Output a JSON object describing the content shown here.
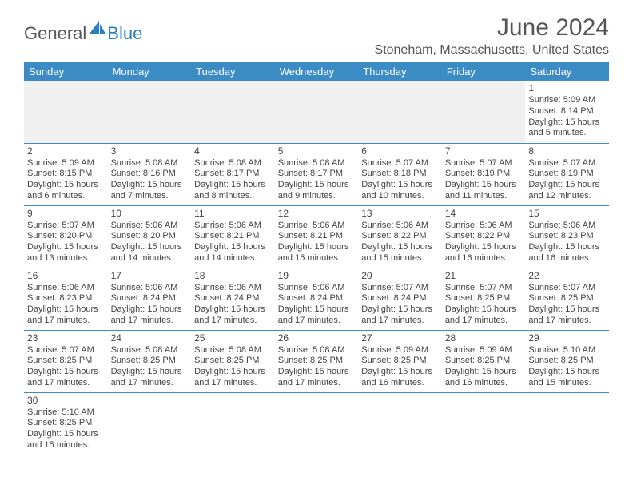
{
  "brand": {
    "part1": "General",
    "part2": "Blue",
    "sail_color": "#2a7fbf"
  },
  "colors": {
    "header_bg": "#3b8bc4",
    "header_fg": "#ffffff",
    "cell_border": "#3b8bc4",
    "blank_bg": "#f0f0f0",
    "text": "#444444",
    "title": "#555555"
  },
  "typography": {
    "month_title_size": 30,
    "location_size": 16,
    "weekday_size": 13,
    "cell_size": 11
  },
  "title": "June 2024",
  "location": "Stoneham, Massachusetts, United States",
  "weekdays": [
    "Sunday",
    "Monday",
    "Tuesday",
    "Wednesday",
    "Thursday",
    "Friday",
    "Saturday"
  ],
  "first_weekday_index": 6,
  "days": [
    {
      "n": 1,
      "sr": "5:09 AM",
      "ss": "8:14 PM",
      "dl": "15 hours and 5 minutes."
    },
    {
      "n": 2,
      "sr": "5:09 AM",
      "ss": "8:15 PM",
      "dl": "15 hours and 6 minutes."
    },
    {
      "n": 3,
      "sr": "5:08 AM",
      "ss": "8:16 PM",
      "dl": "15 hours and 7 minutes."
    },
    {
      "n": 4,
      "sr": "5:08 AM",
      "ss": "8:17 PM",
      "dl": "15 hours and 8 minutes."
    },
    {
      "n": 5,
      "sr": "5:08 AM",
      "ss": "8:17 PM",
      "dl": "15 hours and 9 minutes."
    },
    {
      "n": 6,
      "sr": "5:07 AM",
      "ss": "8:18 PM",
      "dl": "15 hours and 10 minutes."
    },
    {
      "n": 7,
      "sr": "5:07 AM",
      "ss": "8:19 PM",
      "dl": "15 hours and 11 minutes."
    },
    {
      "n": 8,
      "sr": "5:07 AM",
      "ss": "8:19 PM",
      "dl": "15 hours and 12 minutes."
    },
    {
      "n": 9,
      "sr": "5:07 AM",
      "ss": "8:20 PM",
      "dl": "15 hours and 13 minutes."
    },
    {
      "n": 10,
      "sr": "5:06 AM",
      "ss": "8:20 PM",
      "dl": "15 hours and 14 minutes."
    },
    {
      "n": 11,
      "sr": "5:06 AM",
      "ss": "8:21 PM",
      "dl": "15 hours and 14 minutes."
    },
    {
      "n": 12,
      "sr": "5:06 AM",
      "ss": "8:21 PM",
      "dl": "15 hours and 15 minutes."
    },
    {
      "n": 13,
      "sr": "5:06 AM",
      "ss": "8:22 PM",
      "dl": "15 hours and 15 minutes."
    },
    {
      "n": 14,
      "sr": "5:06 AM",
      "ss": "8:22 PM",
      "dl": "15 hours and 16 minutes."
    },
    {
      "n": 15,
      "sr": "5:06 AM",
      "ss": "8:23 PM",
      "dl": "15 hours and 16 minutes."
    },
    {
      "n": 16,
      "sr": "5:06 AM",
      "ss": "8:23 PM",
      "dl": "15 hours and 17 minutes."
    },
    {
      "n": 17,
      "sr": "5:06 AM",
      "ss": "8:24 PM",
      "dl": "15 hours and 17 minutes."
    },
    {
      "n": 18,
      "sr": "5:06 AM",
      "ss": "8:24 PM",
      "dl": "15 hours and 17 minutes."
    },
    {
      "n": 19,
      "sr": "5:06 AM",
      "ss": "8:24 PM",
      "dl": "15 hours and 17 minutes."
    },
    {
      "n": 20,
      "sr": "5:07 AM",
      "ss": "8:24 PM",
      "dl": "15 hours and 17 minutes."
    },
    {
      "n": 21,
      "sr": "5:07 AM",
      "ss": "8:25 PM",
      "dl": "15 hours and 17 minutes."
    },
    {
      "n": 22,
      "sr": "5:07 AM",
      "ss": "8:25 PM",
      "dl": "15 hours and 17 minutes."
    },
    {
      "n": 23,
      "sr": "5:07 AM",
      "ss": "8:25 PM",
      "dl": "15 hours and 17 minutes."
    },
    {
      "n": 24,
      "sr": "5:08 AM",
      "ss": "8:25 PM",
      "dl": "15 hours and 17 minutes."
    },
    {
      "n": 25,
      "sr": "5:08 AM",
      "ss": "8:25 PM",
      "dl": "15 hours and 17 minutes."
    },
    {
      "n": 26,
      "sr": "5:08 AM",
      "ss": "8:25 PM",
      "dl": "15 hours and 17 minutes."
    },
    {
      "n": 27,
      "sr": "5:09 AM",
      "ss": "8:25 PM",
      "dl": "15 hours and 16 minutes."
    },
    {
      "n": 28,
      "sr": "5:09 AM",
      "ss": "8:25 PM",
      "dl": "15 hours and 16 minutes."
    },
    {
      "n": 29,
      "sr": "5:10 AM",
      "ss": "8:25 PM",
      "dl": "15 hours and 15 minutes."
    },
    {
      "n": 30,
      "sr": "5:10 AM",
      "ss": "8:25 PM",
      "dl": "15 hours and 15 minutes."
    }
  ],
  "labels": {
    "sunrise": "Sunrise:",
    "sunset": "Sunset:",
    "daylight": "Daylight:"
  }
}
